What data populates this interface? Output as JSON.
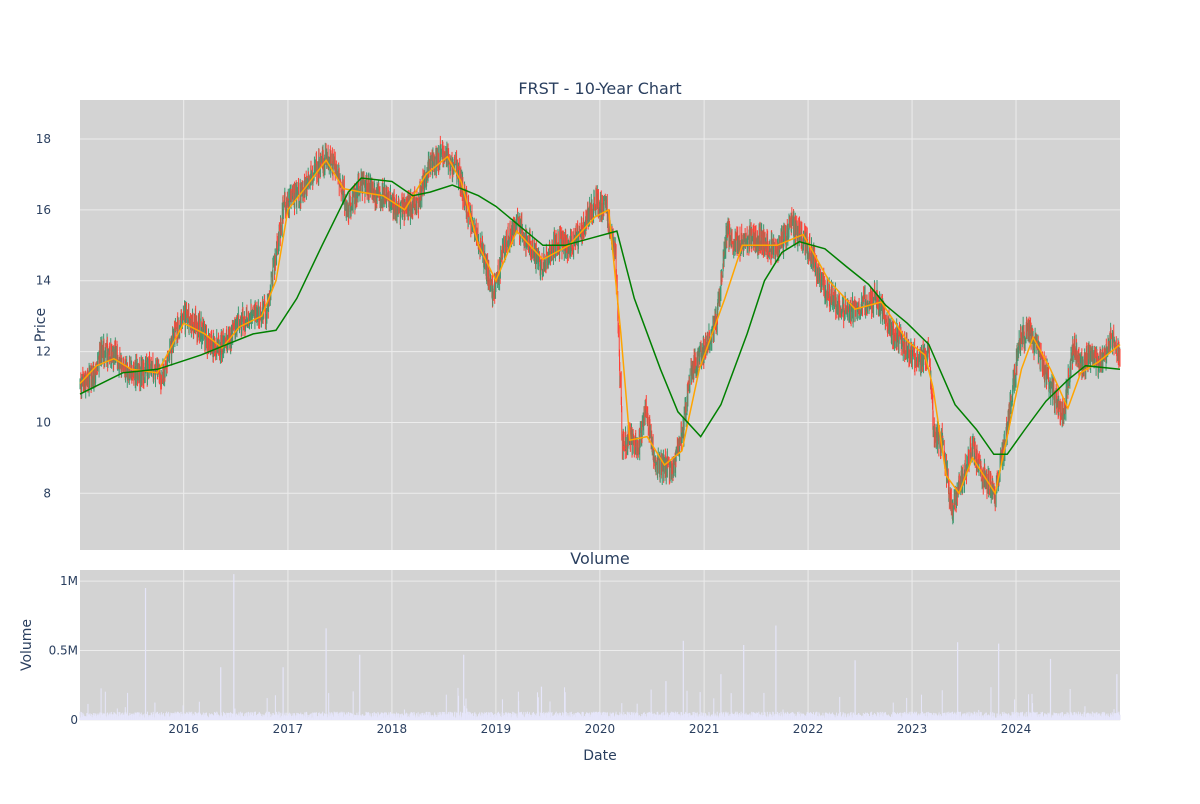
{
  "colors": {
    "plot_bg": "#d3d3d3",
    "grid": "#ececec",
    "increasing": "#3d9970",
    "decreasing": "#ff4136",
    "ma_short": "#ffa500",
    "ma_long": "#008000",
    "volume": "#e6e6fa",
    "text": "#2a3f5f"
  },
  "chart_data": [
    {
      "type": "candlestick",
      "title": "FRST - 10-Year Chart",
      "ylabel": "Price",
      "ylim": [
        6.4,
        19.1
      ],
      "yticks": [
        8,
        10,
        12,
        14,
        16,
        18
      ],
      "xlim": [
        "2015-01-02",
        "2024-12-31"
      ],
      "grid": true,
      "series": [
        {
          "color": "#ffa500"
        },
        {
          "color": "#008000"
        }
      ],
      "price_path": [
        [
          "2015-01-02",
          11.1
        ],
        [
          "2015-02-15",
          11.3
        ],
        [
          "2015-03-20",
          12.0
        ],
        [
          "2015-05-01",
          11.9
        ],
        [
          "2015-06-15",
          11.5
        ],
        [
          "2015-08-01",
          11.4
        ],
        [
          "2015-09-15",
          11.5
        ],
        [
          "2015-10-20",
          11.3
        ],
        [
          "2015-12-01",
          12.5
        ],
        [
          "2016-01-10",
          13.0
        ],
        [
          "2016-03-01",
          12.6
        ],
        [
          "2016-04-15",
          12.1
        ],
        [
          "2016-06-01",
          12.3
        ],
        [
          "2016-07-15",
          12.8
        ],
        [
          "2016-09-01",
          13.0
        ],
        [
          "2016-10-20",
          13.2
        ],
        [
          "2016-11-15",
          14.5
        ],
        [
          "2016-12-20",
          16.2
        ],
        [
          "2017-02-01",
          16.3
        ],
        [
          "2017-03-15",
          16.8
        ],
        [
          "2017-05-01",
          17.4
        ],
        [
          "2017-06-15",
          17.3
        ],
        [
          "2017-08-01",
          16.0
        ],
        [
          "2017-09-15",
          16.8
        ],
        [
          "2017-11-01",
          16.5
        ],
        [
          "2017-12-15",
          16.4
        ],
        [
          "2018-02-01",
          16.0
        ],
        [
          "2018-04-01",
          16.2
        ],
        [
          "2018-05-15",
          17.3
        ],
        [
          "2018-07-01",
          17.6
        ],
        [
          "2018-08-15",
          17.2
        ],
        [
          "2018-10-01",
          15.8
        ],
        [
          "2018-11-15",
          14.8
        ],
        [
          "2018-12-24",
          13.6
        ],
        [
          "2019-02-01",
          15.0
        ],
        [
          "2019-03-15",
          15.6
        ],
        [
          "2019-05-01",
          15.0
        ],
        [
          "2019-06-15",
          14.4
        ],
        [
          "2019-08-01",
          15.1
        ],
        [
          "2019-09-15",
          15.0
        ],
        [
          "2019-11-01",
          15.5
        ],
        [
          "2019-12-15",
          16.2
        ],
        [
          "2020-01-20",
          16.1
        ],
        [
          "2020-02-25",
          14.8
        ],
        [
          "2020-03-20",
          9.4
        ],
        [
          "2020-04-15",
          9.6
        ],
        [
          "2020-05-15",
          9.2
        ],
        [
          "2020-06-10",
          10.4
        ],
        [
          "2020-07-15",
          8.8
        ],
        [
          "2020-09-15",
          8.7
        ],
        [
          "2020-10-20",
          9.8
        ],
        [
          "2020-11-15",
          11.5
        ],
        [
          "2020-12-31",
          12.0
        ],
        [
          "2021-02-15",
          12.9
        ],
        [
          "2021-03-20",
          15.3
        ],
        [
          "2021-05-01",
          15.0
        ],
        [
          "2021-06-15",
          15.2
        ],
        [
          "2021-08-01",
          15.1
        ],
        [
          "2021-09-15",
          14.8
        ],
        [
          "2021-11-01",
          15.6
        ],
        [
          "2021-12-15",
          15.2
        ],
        [
          "2022-01-20",
          14.6
        ],
        [
          "2022-03-01",
          13.8
        ],
        [
          "2022-04-15",
          13.3
        ],
        [
          "2022-06-01",
          13.1
        ],
        [
          "2022-07-15",
          13.4
        ],
        [
          "2022-09-01",
          13.5
        ],
        [
          "2022-10-15",
          12.6
        ],
        [
          "2022-12-01",
          12.2
        ],
        [
          "2023-01-20",
          11.8
        ],
        [
          "2023-03-01",
          11.9
        ],
        [
          "2023-03-20",
          9.6
        ],
        [
          "2023-04-20",
          9.4
        ],
        [
          "2023-05-20",
          7.5
        ],
        [
          "2023-06-20",
          8.2
        ],
        [
          "2023-07-30",
          9.3
        ],
        [
          "2023-09-01",
          8.6
        ],
        [
          "2023-10-20",
          8.0
        ],
        [
          "2023-12-01",
          9.8
        ],
        [
          "2024-01-15",
          12.4
        ],
        [
          "2024-02-15",
          12.6
        ],
        [
          "2024-03-20",
          12.0
        ],
        [
          "2024-05-01",
          11.0
        ],
        [
          "2024-06-15",
          10.2
        ],
        [
          "2024-07-20",
          12.2
        ],
        [
          "2024-08-15",
          11.6
        ],
        [
          "2024-09-15",
          11.9
        ],
        [
          "2024-10-20",
          11.6
        ],
        [
          "2024-12-01",
          12.4
        ],
        [
          "2024-12-31",
          11.9
        ]
      ],
      "ma_short_path": [
        [
          "2015-01-02",
          11.1
        ],
        [
          "2015-03-01",
          11.6
        ],
        [
          "2015-05-01",
          11.8
        ],
        [
          "2015-07-01",
          11.5
        ],
        [
          "2015-10-01",
          11.4
        ],
        [
          "2016-01-01",
          12.8
        ],
        [
          "2016-03-15",
          12.5
        ],
        [
          "2016-05-15",
          12.1
        ],
        [
          "2016-07-15",
          12.7
        ],
        [
          "2016-10-01",
          13.0
        ],
        [
          "2016-11-20",
          14.0
        ],
        [
          "2017-01-01",
          16.0
        ],
        [
          "2017-03-01",
          16.6
        ],
        [
          "2017-05-15",
          17.4
        ],
        [
          "2017-07-15",
          16.6
        ],
        [
          "2017-09-15",
          16.5
        ],
        [
          "2017-12-01",
          16.4
        ],
        [
          "2018-02-15",
          16.0
        ],
        [
          "2018-05-01",
          17.0
        ],
        [
          "2018-07-15",
          17.5
        ],
        [
          "2018-09-01",
          16.8
        ],
        [
          "2018-11-01",
          15.0
        ],
        [
          "2019-01-01",
          14.0
        ],
        [
          "2019-03-15",
          15.4
        ],
        [
          "2019-06-15",
          14.6
        ],
        [
          "2019-09-15",
          15.0
        ],
        [
          "2019-12-15",
          15.8
        ],
        [
          "2020-02-01",
          16.0
        ],
        [
          "2020-03-15",
          12.5
        ],
        [
          "2020-04-15",
          9.5
        ],
        [
          "2020-06-15",
          9.6
        ],
        [
          "2020-08-15",
          8.8
        ],
        [
          "2020-10-15",
          9.2
        ],
        [
          "2020-12-15",
          11.5
        ],
        [
          "2021-03-15",
          13.5
        ],
        [
          "2021-05-15",
          15.0
        ],
        [
          "2021-09-15",
          15.0
        ],
        [
          "2021-12-15",
          15.3
        ],
        [
          "2022-03-15",
          14.0
        ],
        [
          "2022-06-15",
          13.2
        ],
        [
          "2022-09-15",
          13.4
        ],
        [
          "2022-12-15",
          12.3
        ],
        [
          "2023-02-15",
          11.9
        ],
        [
          "2023-03-15",
          11.0
        ],
        [
          "2023-05-01",
          8.5
        ],
        [
          "2023-06-15",
          8.0
        ],
        [
          "2023-08-01",
          9.0
        ],
        [
          "2023-10-20",
          8.0
        ],
        [
          "2024-01-20",
          11.5
        ],
        [
          "2024-03-01",
          12.4
        ],
        [
          "2024-05-01",
          11.5
        ],
        [
          "2024-07-01",
          10.4
        ],
        [
          "2024-08-15",
          11.4
        ],
        [
          "2024-10-15",
          11.7
        ],
        [
          "2024-12-31",
          12.2
        ]
      ],
      "ma_long_path": [
        [
          "2015-01-02",
          10.8
        ],
        [
          "2015-06-01",
          11.4
        ],
        [
          "2015-10-01",
          11.5
        ],
        [
          "2016-03-01",
          11.9
        ],
        [
          "2016-07-01",
          12.3
        ],
        [
          "2016-09-01",
          12.5
        ],
        [
          "2016-11-20",
          12.6
        ],
        [
          "2017-02-01",
          13.5
        ],
        [
          "2017-05-01",
          15.0
        ],
        [
          "2017-08-01",
          16.5
        ],
        [
          "2017-09-15",
          16.9
        ],
        [
          "2018-01-01",
          16.8
        ],
        [
          "2018-03-15",
          16.4
        ],
        [
          "2018-05-15",
          16.5
        ],
        [
          "2018-08-01",
          16.7
        ],
        [
          "2018-11-01",
          16.4
        ],
        [
          "2019-01-01",
          16.1
        ],
        [
          "2019-04-01",
          15.5
        ],
        [
          "2019-06-15",
          15.0
        ],
        [
          "2019-09-01",
          15.0
        ],
        [
          "2019-12-01",
          15.2
        ],
        [
          "2020-03-01",
          15.4
        ],
        [
          "2020-05-01",
          13.5
        ],
        [
          "2020-08-01",
          11.5
        ],
        [
          "2020-10-01",
          10.3
        ],
        [
          "2020-12-20",
          9.6
        ],
        [
          "2021-03-01",
          10.5
        ],
        [
          "2021-06-01",
          12.5
        ],
        [
          "2021-08-01",
          14.0
        ],
        [
          "2021-10-01",
          14.8
        ],
        [
          "2021-12-01",
          15.1
        ],
        [
          "2022-03-01",
          14.9
        ],
        [
          "2022-05-15",
          14.4
        ],
        [
          "2022-08-01",
          13.9
        ],
        [
          "2022-10-01",
          13.3
        ],
        [
          "2022-12-15",
          12.8
        ],
        [
          "2023-03-01",
          12.2
        ],
        [
          "2023-06-01",
          10.5
        ],
        [
          "2023-08-15",
          9.8
        ],
        [
          "2023-10-15",
          9.1
        ],
        [
          "2023-12-01",
          9.1
        ],
        [
          "2024-02-01",
          9.8
        ],
        [
          "2024-04-15",
          10.6
        ],
        [
          "2024-07-01",
          11.2
        ],
        [
          "2024-09-01",
          11.6
        ],
        [
          "2024-12-31",
          11.5
        ]
      ]
    },
    {
      "type": "bar",
      "title": "Volume",
      "xlabel": "Date",
      "ylabel": "Volume",
      "ylim": [
        0,
        1080000
      ],
      "yticks": [
        0,
        500000,
        1000000
      ],
      "ytick_labels": [
        "0",
        "0.5M",
        "1M"
      ],
      "xticks": [
        "2016-01-01",
        "2017-01-01",
        "2018-01-01",
        "2019-01-01",
        "2020-01-01",
        "2021-01-01",
        "2022-01-01",
        "2023-01-01",
        "2024-01-01"
      ],
      "xtick_labels": [
        "2016",
        "2017",
        "2018",
        "2019",
        "2020",
        "2021",
        "2022",
        "2023",
        "2024"
      ],
      "color": "#e6e6fa",
      "spikes": [
        [
          "2015-08-20",
          950000
        ],
        [
          "2016-06-25",
          1050000
        ],
        [
          "2016-05-10",
          380000
        ],
        [
          "2016-12-15",
          380000
        ],
        [
          "2017-05-15",
          660000
        ],
        [
          "2017-09-10",
          470000
        ],
        [
          "2018-09-10",
          470000
        ],
        [
          "2019-06-10",
          240000
        ],
        [
          "2019-09-01",
          200000
        ],
        [
          "2020-08-20",
          280000
        ],
        [
          "2020-10-20",
          570000
        ],
        [
          "2021-03-01",
          330000
        ],
        [
          "2021-05-20",
          540000
        ],
        [
          "2021-09-10",
          680000
        ],
        [
          "2022-06-15",
          430000
        ],
        [
          "2023-06-10",
          560000
        ],
        [
          "2023-11-01",
          550000
        ],
        [
          "2024-05-01",
          440000
        ],
        [
          "2024-12-20",
          330000
        ]
      ]
    }
  ]
}
